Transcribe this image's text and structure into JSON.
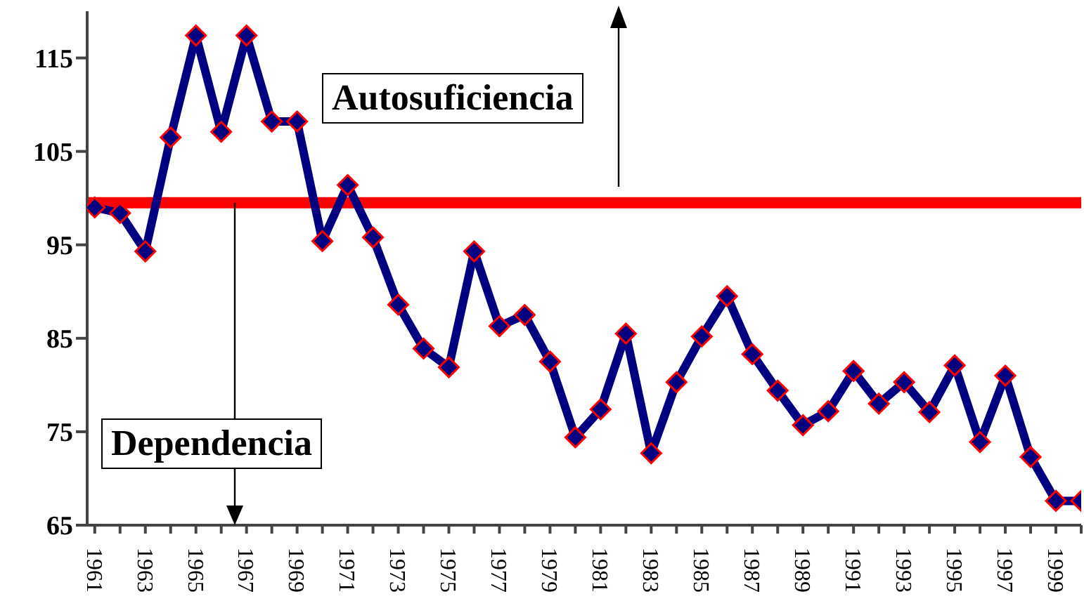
{
  "chart_data": {
    "type": "line",
    "categories": [
      "1961",
      null,
      "1963",
      null,
      "1965",
      null,
      "1967",
      null,
      "1969",
      null,
      "1971",
      null,
      "1973",
      null,
      "1975",
      null,
      "1977",
      null,
      "1979",
      null,
      "1981",
      null,
      "1983",
      null,
      "1985",
      null,
      "1987",
      null,
      "1989",
      null,
      "1991",
      null,
      "1993",
      null,
      "1995",
      null,
      "1997",
      null,
      "1999",
      null
    ],
    "series": [
      {
        "color": "#000080",
        "values": [
          99.0,
          98.4,
          94.3,
          106.5,
          117.4,
          107.1,
          117.4,
          108.2,
          108.2,
          95.4,
          101.4,
          95.8,
          88.6,
          83.9,
          81.9,
          94.3,
          86.3,
          87.5,
          82.5,
          74.4,
          77.4,
          85.5,
          72.7,
          80.3,
          85.2,
          89.5,
          83.3,
          79.4,
          75.7,
          77.2,
          81.5,
          78.0,
          80.3,
          77.1,
          82.1,
          73.9,
          81.0,
          72.3,
          67.6,
          67.6
        ]
      }
    ],
    "ylim": [
      65,
      120
    ],
    "yticks": [
      65,
      75,
      85,
      95,
      105,
      115
    ],
    "ref_lines": [
      {
        "axis": "y",
        "value": 99.5,
        "color": "#ff0000"
      }
    ],
    "annotations": [
      "Autosuficiencia",
      "Dependencia"
    ],
    "marker": "diamond",
    "grid": false,
    "legend": false
  }
}
